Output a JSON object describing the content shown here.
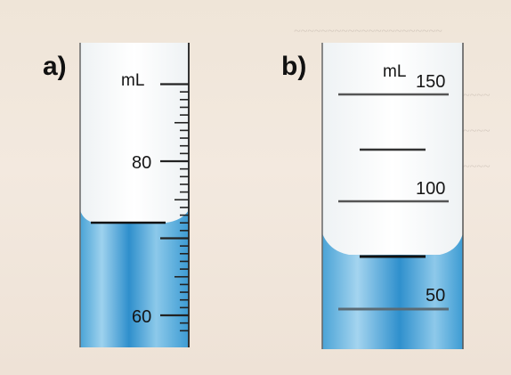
{
  "panel_a": {
    "label": "a)",
    "unit": "mL",
    "major_ticks": [
      {
        "value": 80,
        "label": "80"
      },
      {
        "value": 60,
        "label": "60"
      }
    ],
    "liquid_level_mL": 73
  },
  "panel_b": {
    "label": "b)",
    "unit": "mL",
    "major_ticks": [
      {
        "value": 150,
        "label": "150"
      },
      {
        "value": 100,
        "label": "100"
      },
      {
        "value": 50,
        "label": "50"
      }
    ],
    "liquid_level_mL": 73
  },
  "colors": {
    "liquid": "#3c9bd3",
    "liquid_light": "#8cc9ea",
    "glass_line": "#333333",
    "paper": "#f0e6da"
  }
}
